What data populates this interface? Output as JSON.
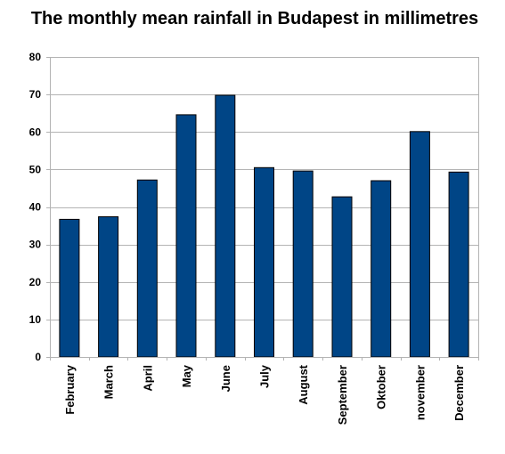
{
  "chart_data": {
    "type": "bar",
    "title": "The monthly mean rainfall in Budapest in millimetres",
    "xlabel": "",
    "ylabel": "",
    "categories": [
      "February",
      "March",
      "April",
      "May",
      "June",
      "July",
      "August",
      "September",
      "Oktober",
      "november",
      "December"
    ],
    "values": [
      36.7,
      37.4,
      47.2,
      64.6,
      69.8,
      50.5,
      49.6,
      42.7,
      47.0,
      60.1,
      49.3
    ],
    "ylim": [
      0,
      80
    ],
    "yticks": [
      0,
      10,
      20,
      30,
      40,
      50,
      60,
      70,
      80
    ],
    "grid": true,
    "legend": "none",
    "colors": {
      "bar_fill": "#004586",
      "bar_stroke": "#000000",
      "grid": "#b3b3b3",
      "plot_border": "#b3b3b3",
      "background": "#ffffff"
    }
  }
}
